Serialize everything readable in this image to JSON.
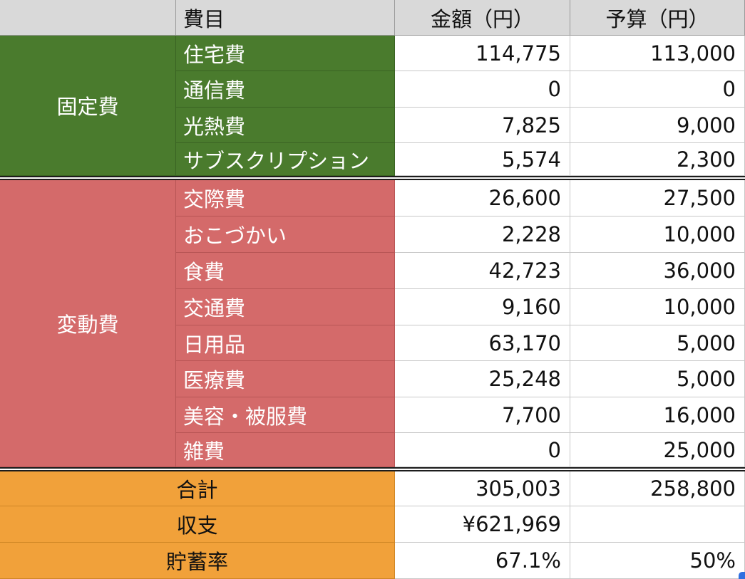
{
  "header": {
    "category": "",
    "item": "費目",
    "amount": "金額（円）",
    "budget": "予算（円）"
  },
  "fixed": {
    "group_label": "固定費",
    "rows": [
      {
        "item": "住宅費",
        "amount": "114,775",
        "budget": "113,000"
      },
      {
        "item": "通信費",
        "amount": "0",
        "budget": "0"
      },
      {
        "item": "光熱費",
        "amount": "7,825",
        "budget": "9,000"
      },
      {
        "item": "サブスクリプション",
        "amount": "5,574",
        "budget": "2,300"
      }
    ]
  },
  "variable": {
    "group_label": "変動費",
    "rows": [
      {
        "item": "交際費",
        "amount": "26,600",
        "budget": "27,500"
      },
      {
        "item": "おこづかい",
        "amount": "2,228",
        "budget": "10,000"
      },
      {
        "item": "食費",
        "amount": "42,723",
        "budget": "36,000"
      },
      {
        "item": "交通費",
        "amount": "9,160",
        "budget": "10,000"
      },
      {
        "item": "日用品",
        "amount": "63,170",
        "budget": "5,000"
      },
      {
        "item": "医療費",
        "amount": "25,248",
        "budget": "5,000"
      },
      {
        "item": "美容・被服費",
        "amount": "7,700",
        "budget": "16,000"
      },
      {
        "item": "雑費",
        "amount": "0",
        "budget": "25,000"
      }
    ]
  },
  "summary": [
    {
      "label": "合計",
      "amount": "305,003",
      "budget": "258,800"
    },
    {
      "label": "収支",
      "amount": "¥621,969",
      "budget": ""
    },
    {
      "label": "貯蓄率",
      "amount": "67.1%",
      "budget": "50%"
    }
  ],
  "colors": {
    "fixed_group": "#4a7b2d",
    "variable_group": "#d46a6a",
    "summary_group": "#f1a13a",
    "header": "#d9d9d9"
  }
}
